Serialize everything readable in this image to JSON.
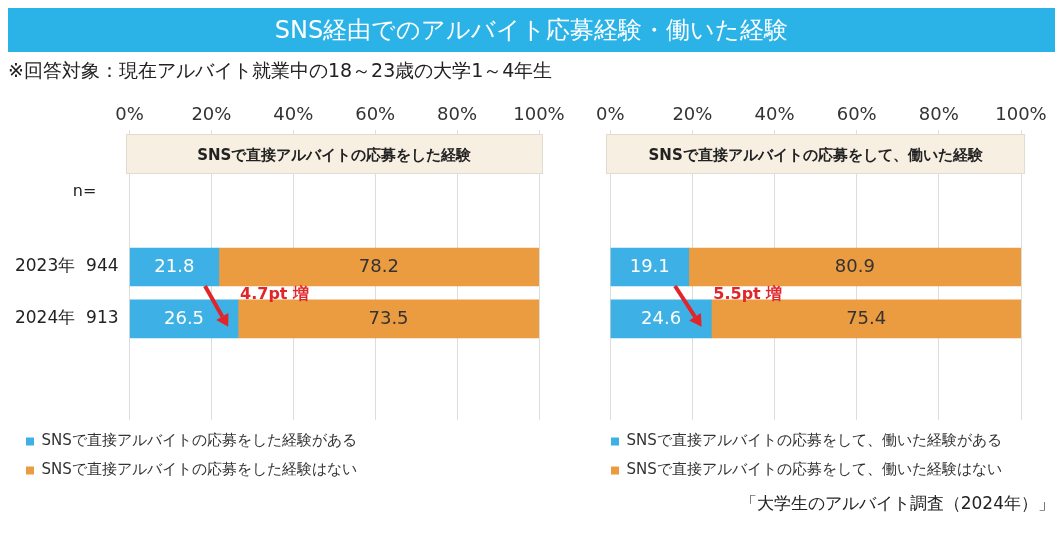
{
  "chart_data": [
    {
      "type": "bar",
      "orientation": "horizontal",
      "stacked": true,
      "title": "SNS経由でのアルバイト応募経験・働いた経験",
      "subtitle": "※回答対象：現在アルバイト就業中の18～23歳の大学1～4年生",
      "xlabel": "SNSで直接アルバイトの応募をした経験",
      "categories": [
        "2023年  944",
        "2024年  913"
      ],
      "series": [
        {
          "name": "SNSで直接アルバイトの応募をした経験がある",
          "color": "#3db1e6",
          "values": [
            21.8,
            26.5
          ]
        },
        {
          "name": "SNSで直接アルバイトの応募をした経験はない",
          "color": "#eb9b40",
          "values": [
            78.2,
            73.5
          ]
        }
      ],
      "xlim": [
        0,
        100
      ],
      "xticks": [
        {
          "value": 0,
          "label": "0%"
        },
        {
          "value": 20,
          "label": "20%"
        },
        {
          "value": 40,
          "label": "40%"
        },
        {
          "value": 60,
          "label": "60%"
        },
        {
          "value": 80,
          "label": "80%"
        },
        {
          "value": 100,
          "label": "100%"
        }
      ],
      "grid": "x",
      "legend": "bottom",
      "data_labels": true,
      "annotations": [
        "n=",
        "「大学生のアルバイト調査（2024年）」",
        "4.7pt 増"
      ]
    },
    {
      "type": "bar",
      "orientation": "horizontal",
      "stacked": true,
      "xlabel": "SNSで直接アルバイトの応募をして、働いた経験",
      "categories": [
        null,
        null
      ],
      "series": [
        {
          "name": "SNSで直接アルバイトの応募をして、働いた経験がある",
          "color": "#3db1e6",
          "values": [
            19.1,
            24.6
          ]
        },
        {
          "name": "SNSで直接アルバイトの応募をして、働いた経験はない",
          "color": "#eb9b40",
          "values": [
            80.9,
            75.4
          ]
        }
      ],
      "xlim": [
        0,
        100
      ],
      "xticks": [
        {
          "value": 0,
          "label": "0%"
        },
        {
          "value": 20,
          "label": "20%"
        },
        {
          "value": 40,
          "label": "40%"
        },
        {
          "value": 60,
          "label": "60%"
        },
        {
          "value": 80,
          "label": "80%"
        },
        {
          "value": 100,
          "label": "100%"
        }
      ],
      "grid": "x",
      "legend": "bottom",
      "data_labels": true,
      "tick_labels": "x",
      "annotations": [
        "5.5pt 増"
      ]
    }
  ]
}
